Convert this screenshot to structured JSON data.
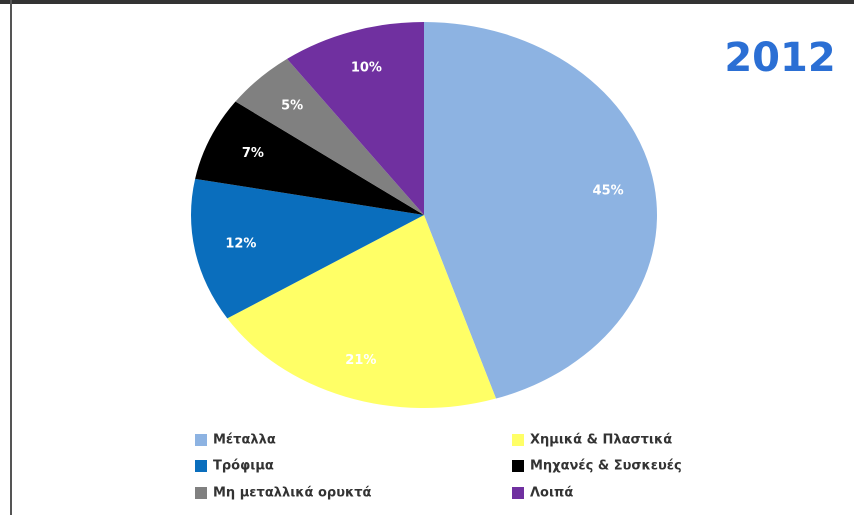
{
  "chart_data": {
    "type": "pie",
    "title": "2012",
    "categories": [
      "Μέταλλα",
      "Χημικά & Πλαστικά",
      "Τρόφιμα",
      "Μηχανές & Συσκευές",
      "Μη μεταλλικά ορυκτά",
      "Λοιπά"
    ],
    "values": [
      45,
      21,
      12,
      7,
      5,
      10
    ],
    "value_labels": [
      "45%",
      "21%",
      "12%",
      "7%",
      "5%",
      "10%"
    ],
    "colors": [
      "#8db3e2",
      "#ffff66",
      "#0a6ebd",
      "#000000",
      "#808080",
      "#7030a0"
    ],
    "legend": "bottom"
  }
}
